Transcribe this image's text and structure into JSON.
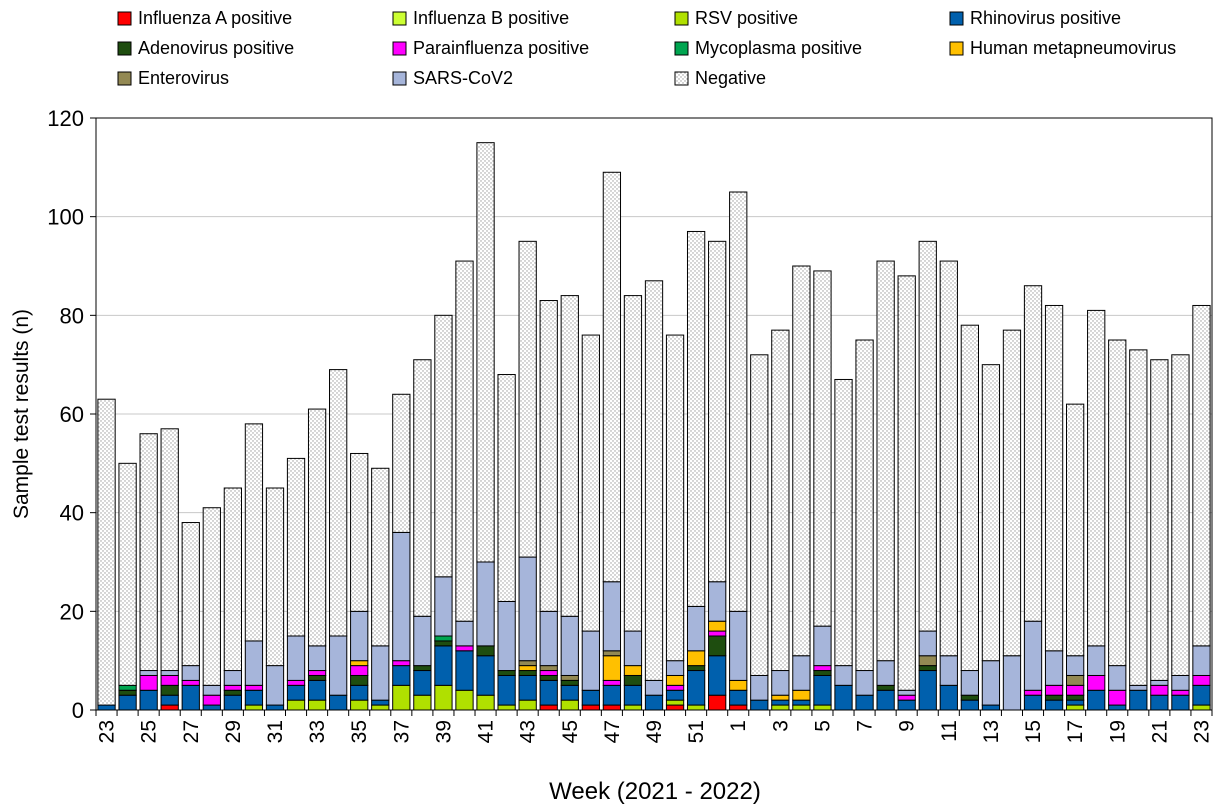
{
  "chart_data": {
    "type": "bar",
    "stacked": true,
    "xlabel": "Week (2021 - 2022)",
    "ylabel": "Sample test results (n)",
    "ylim": [
      0,
      120
    ],
    "yticks": [
      0,
      20,
      40,
      60,
      80,
      100,
      120
    ],
    "grid": "horizontal",
    "legend_position": "top",
    "categories": [
      "23",
      "24",
      "25",
      "26",
      "27",
      "28",
      "29",
      "30",
      "31",
      "32",
      "33",
      "34",
      "35",
      "36",
      "37",
      "38",
      "39",
      "40",
      "41",
      "42",
      "43",
      "44",
      "45",
      "46",
      "47",
      "48",
      "49",
      "50",
      "51",
      "52",
      "1",
      "2",
      "3",
      "4",
      "5",
      "6",
      "7",
      "8",
      "9",
      "10",
      "11",
      "12",
      "13",
      "14",
      "15",
      "16",
      "17",
      "18",
      "19",
      "20",
      "21",
      "22",
      "23"
    ],
    "series": [
      {
        "name": "Influenza A positive",
        "color": "#ff0000",
        "values": [
          0,
          0,
          0,
          1,
          0,
          0,
          0,
          0,
          0,
          0,
          0,
          0,
          0,
          0,
          0,
          0,
          0,
          0,
          0,
          0,
          0,
          1,
          0,
          1,
          1,
          0,
          0,
          1,
          0,
          3,
          1,
          0,
          0,
          0,
          0,
          0,
          0,
          0,
          0,
          0,
          0,
          0,
          0,
          0,
          0,
          0,
          0,
          0,
          0,
          0,
          0,
          0,
          0
        ]
      },
      {
        "name": "Influenza B positive",
        "color": "#ccff33",
        "values": [
          0,
          0,
          0,
          0,
          0,
          0,
          0,
          0,
          0,
          0,
          0,
          0,
          0,
          0,
          0,
          0,
          0,
          0,
          0,
          0,
          0,
          0,
          0,
          0,
          0,
          0,
          0,
          0,
          0,
          0,
          0,
          0,
          0,
          0,
          0,
          0,
          0,
          0,
          0,
          0,
          0,
          0,
          0,
          0,
          0,
          0,
          0,
          0,
          0,
          0,
          0,
          0,
          0
        ]
      },
      {
        "name": "RSV positive",
        "color": "#b0e000",
        "values": [
          0,
          0,
          0,
          0,
          0,
          0,
          0,
          1,
          0,
          2,
          2,
          0,
          2,
          1,
          5,
          3,
          5,
          4,
          3,
          1,
          2,
          0,
          2,
          0,
          0,
          1,
          0,
          1,
          1,
          0,
          0,
          0,
          1,
          1,
          1,
          0,
          0,
          0,
          0,
          0,
          0,
          0,
          0,
          0,
          0,
          0,
          1,
          0,
          0,
          0,
          0,
          0,
          1
        ]
      },
      {
        "name": "Rhinovirus positive",
        "color": "#0060ad",
        "values": [
          1,
          3,
          4,
          2,
          5,
          1,
          3,
          3,
          1,
          3,
          4,
          3,
          3,
          1,
          4,
          5,
          8,
          8,
          8,
          6,
          5,
          5,
          3,
          3,
          4,
          4,
          3,
          2,
          7,
          8,
          3,
          2,
          1,
          1,
          6,
          5,
          3,
          4,
          2,
          8,
          5,
          2,
          1,
          0,
          3,
          2,
          1,
          4,
          1,
          4,
          3,
          3,
          4
        ]
      },
      {
        "name": "Adenovirus positive",
        "color": "#1e4d0f",
        "values": [
          0,
          1,
          0,
          2,
          0,
          0,
          1,
          0,
          0,
          0,
          1,
          0,
          2,
          0,
          0,
          1,
          1,
          0,
          2,
          1,
          1,
          1,
          1,
          0,
          0,
          2,
          0,
          0,
          1,
          4,
          0,
          0,
          0,
          0,
          1,
          0,
          0,
          1,
          0,
          1,
          0,
          1,
          0,
          0,
          0,
          1,
          1,
          0,
          0,
          0,
          0,
          0,
          0
        ]
      },
      {
        "name": "Parainfluenza positive",
        "color": "#ff00ff",
        "values": [
          0,
          0,
          3,
          2,
          1,
          2,
          1,
          1,
          0,
          1,
          1,
          0,
          2,
          0,
          1,
          0,
          0,
          1,
          0,
          0,
          0,
          1,
          0,
          0,
          1,
          0,
          0,
          1,
          0,
          1,
          0,
          0,
          0,
          0,
          1,
          0,
          0,
          0,
          1,
          0,
          0,
          0,
          0,
          0,
          1,
          2,
          2,
          3,
          3,
          0,
          2,
          1,
          2
        ]
      },
      {
        "name": "Mycoplasma positive",
        "color": "#00a550",
        "values": [
          0,
          1,
          0,
          0,
          0,
          0,
          0,
          0,
          0,
          0,
          0,
          0,
          0,
          0,
          0,
          0,
          1,
          0,
          0,
          0,
          0,
          0,
          0,
          0,
          0,
          0,
          0,
          0,
          0,
          0,
          0,
          0,
          0,
          0,
          0,
          0,
          0,
          0,
          0,
          0,
          0,
          0,
          0,
          0,
          0,
          0,
          0,
          0,
          0,
          0,
          0,
          0,
          0
        ]
      },
      {
        "name": "Human metapneumovirus",
        "color": "#ffc000",
        "values": [
          0,
          0,
          0,
          0,
          0,
          0,
          0,
          0,
          0,
          0,
          0,
          0,
          1,
          0,
          0,
          0,
          0,
          0,
          0,
          0,
          1,
          0,
          0,
          0,
          5,
          2,
          0,
          2,
          3,
          2,
          2,
          0,
          1,
          2,
          0,
          0,
          0,
          0,
          0,
          0,
          0,
          0,
          0,
          0,
          0,
          0,
          0,
          0,
          0,
          0,
          0,
          0,
          0
        ]
      },
      {
        "name": "Enterovirus",
        "color": "#938953",
        "values": [
          0,
          0,
          0,
          0,
          0,
          0,
          0,
          0,
          0,
          0,
          0,
          0,
          0,
          0,
          0,
          0,
          0,
          0,
          0,
          0,
          1,
          1,
          1,
          0,
          1,
          0,
          0,
          0,
          0,
          0,
          0,
          0,
          0,
          0,
          0,
          0,
          0,
          0,
          0,
          2,
          0,
          0,
          0,
          0,
          0,
          0,
          2,
          0,
          0,
          0,
          0,
          0,
          0
        ]
      },
      {
        "name": "SARS-CoV2",
        "color": "#a6b5da",
        "values": [
          0,
          0,
          1,
          1,
          3,
          2,
          3,
          9,
          8,
          9,
          5,
          12,
          10,
          11,
          26,
          10,
          12,
          5,
          17,
          14,
          21,
          11,
          12,
          12,
          14,
          7,
          3,
          3,
          9,
          8,
          14,
          5,
          5,
          7,
          8,
          4,
          5,
          5,
          1,
          5,
          6,
          5,
          9,
          11,
          14,
          7,
          4,
          6,
          5,
          1,
          1,
          3,
          6
        ]
      },
      {
        "name": "Negative",
        "color": "#e8e8e8",
        "values": [
          62,
          45,
          48,
          49,
          29,
          36,
          37,
          44,
          36,
          36,
          48,
          54,
          32,
          36,
          28,
          52,
          53,
          73,
          85,
          46,
          64,
          63,
          65,
          60,
          83,
          68,
          81,
          66,
          76,
          69,
          85,
          65,
          69,
          79,
          72,
          58,
          67,
          81,
          84,
          79,
          80,
          70,
          60,
          66,
          68,
          70,
          51,
          68,
          66,
          68,
          65,
          65,
          69
        ]
      }
    ]
  }
}
